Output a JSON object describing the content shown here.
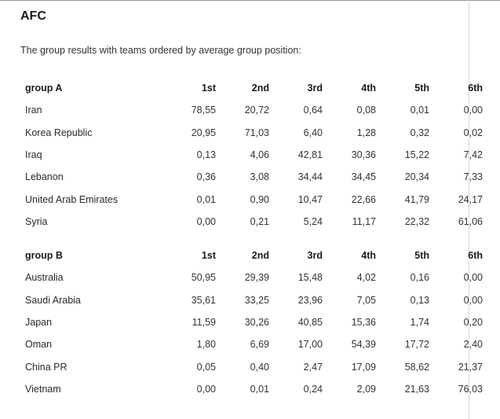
{
  "title": "AFC",
  "intro": "The group results with teams ordered by average group position:",
  "groups": [
    {
      "header": "group A",
      "columns": [
        "1st",
        "2nd",
        "3rd",
        "4th",
        "5th",
        "6th"
      ],
      "rows": [
        {
          "team": "Iran",
          "values": [
            "78,55",
            "20,72",
            "0,64",
            "0,08",
            "0,01",
            "0,00"
          ]
        },
        {
          "team": "Korea Republic",
          "values": [
            "20,95",
            "71,03",
            "6,40",
            "1,28",
            "0,32",
            "0,02"
          ]
        },
        {
          "team": "Iraq",
          "values": [
            "0,13",
            "4,06",
            "42,81",
            "30,36",
            "15,22",
            "7,42"
          ]
        },
        {
          "team": "Lebanon",
          "values": [
            "0,36",
            "3,08",
            "34,44",
            "34,45",
            "20,34",
            "7,33"
          ]
        },
        {
          "team": "United Arab Emirates",
          "values": [
            "0,01",
            "0,90",
            "10,47",
            "22,66",
            "41,79",
            "24,17"
          ]
        },
        {
          "team": "Syria",
          "values": [
            "0,00",
            "0,21",
            "5,24",
            "11,17",
            "22,32",
            "61,06"
          ]
        }
      ]
    },
    {
      "header": "group B",
      "columns": [
        "1st",
        "2nd",
        "3rd",
        "4th",
        "5th",
        "6th"
      ],
      "rows": [
        {
          "team": "Australia",
          "values": [
            "50,95",
            "29,39",
            "15,48",
            "4,02",
            "0,16",
            "0,00"
          ]
        },
        {
          "team": "Saudi Arabia",
          "values": [
            "35,61",
            "33,25",
            "23,96",
            "7,05",
            "0,13",
            "0,00"
          ]
        },
        {
          "team": "Japan",
          "values": [
            "11,59",
            "30,26",
            "40,85",
            "15,36",
            "1,74",
            "0,20"
          ]
        },
        {
          "team": "Oman",
          "values": [
            "1,80",
            "6,69",
            "17,00",
            "54,39",
            "17,72",
            "2,40"
          ]
        },
        {
          "team": "China PR",
          "values": [
            "0,05",
            "0,40",
            "2,47",
            "17,09",
            "58,62",
            "21,37"
          ]
        },
        {
          "team": "Vietnam",
          "values": [
            "0,00",
            "0,01",
            "0,24",
            "2,09",
            "21,63",
            "76,03"
          ]
        }
      ]
    }
  ]
}
